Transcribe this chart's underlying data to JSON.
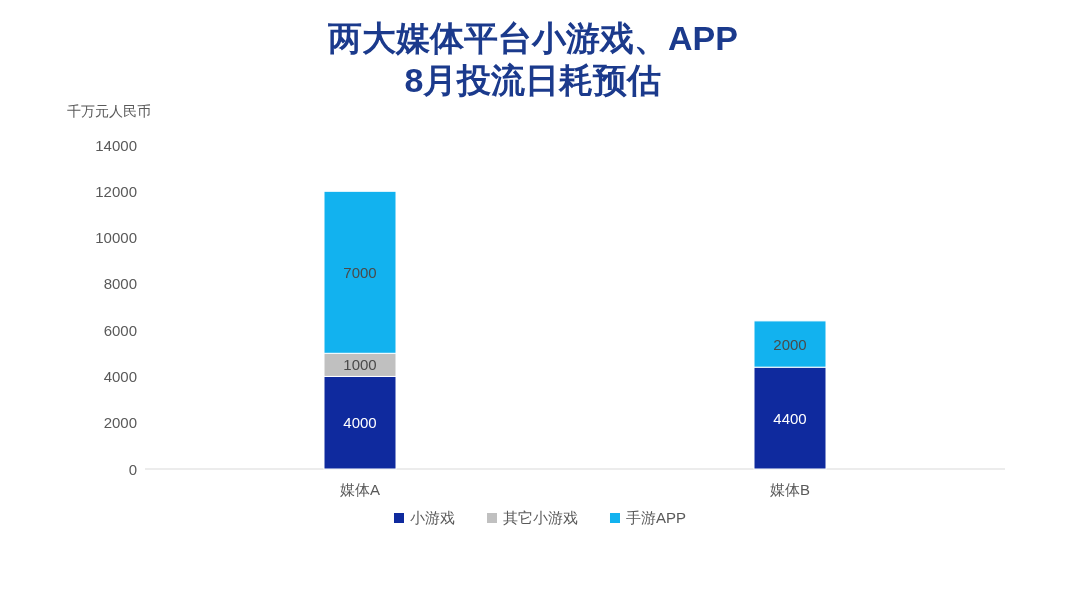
{
  "chart_data": {
    "type": "bar",
    "title": "两大媒体平台小游戏、APP\n8月投流日耗预估",
    "ylabel": "千万元人民币",
    "categories": [
      "媒体A",
      "媒体B"
    ],
    "series": [
      {
        "name": "小游戏",
        "color": "#0f2a9e",
        "values": [
          4000,
          4400
        ]
      },
      {
        "name": "其它小游戏",
        "color": "#c0c0c0",
        "values": [
          1000,
          null
        ]
      },
      {
        "name": "手游APP",
        "color": "#12b2ef",
        "values": [
          7000,
          2000
        ]
      }
    ],
    "stacked": true,
    "ylim": [
      0,
      14000
    ],
    "yticks": [
      0,
      2000,
      4000,
      6000,
      8000,
      10000,
      12000,
      14000
    ],
    "data_labels": true,
    "legend": "bottom"
  }
}
